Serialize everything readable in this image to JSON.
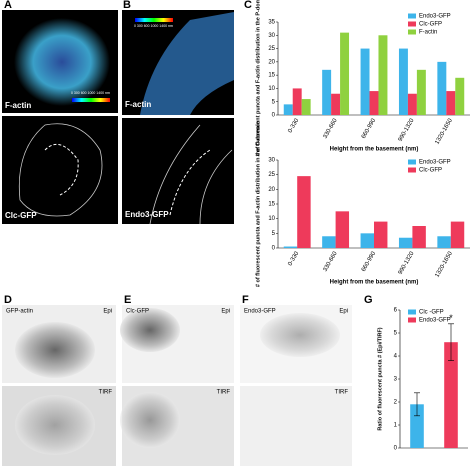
{
  "panels": {
    "A": {
      "letter": "A",
      "top_label": "F-actin",
      "bottom_label": "Clc-GFP",
      "colorbar": "0  300  600  1000  1400 nm"
    },
    "B": {
      "letter": "B",
      "top_label": "F-actin",
      "bottom_label": "Endo3-GFP",
      "colorbar": "0  300  600  1000  1400 nm"
    },
    "C": {
      "letter": "C"
    },
    "D": {
      "letter": "D",
      "label": "GFP-actin",
      "top": "Epi",
      "bottom": "TIRF"
    },
    "E": {
      "letter": "E",
      "label": "Clc-GFP",
      "top": "Epi",
      "bottom": "TIRF"
    },
    "F": {
      "letter": "F",
      "label": "Endo3-GFP",
      "top": "Epi",
      "bottom": "TIRF"
    },
    "G": {
      "letter": "G"
    }
  },
  "chart_data": [
    {
      "type": "bar",
      "ylabel": "# of fluorescent puncta and F-actin distribution in the P-domain (%)",
      "xlabel": "Height from the basement (nm)",
      "categories": [
        "0-330",
        "330-660",
        "660-990",
        "990-1320",
        "1320-1650"
      ],
      "series": [
        {
          "name": "Endo3-GFP",
          "color": "#3db4ea",
          "values": [
            4,
            17,
            25,
            25,
            20
          ]
        },
        {
          "name": "Clc-GFP",
          "color": "#ee3a5b",
          "values": [
            10,
            8,
            9,
            8,
            9
          ]
        },
        {
          "name": "F-actin",
          "color": "#8fd13f",
          "values": [
            6,
            31,
            30,
            17,
            14
          ]
        }
      ],
      "ylim": [
        0,
        35
      ],
      "yticks": [
        0,
        5,
        10,
        15,
        20,
        25,
        30,
        35
      ]
    },
    {
      "type": "bar",
      "ylabel": "# of fluorescent puncta and F-actin distribution in the C-domain",
      "xlabel": "Height from the basement (nm)",
      "categories": [
        "0-330",
        "330-660",
        "660-990",
        "990-1320",
        "1320-1650"
      ],
      "series": [
        {
          "name": "Endo3-GFP",
          "color": "#3db4ea",
          "values": [
            0.5,
            4,
            5,
            3.5,
            4
          ]
        },
        {
          "name": "Clc-GFP",
          "color": "#ee3a5b",
          "values": [
            24.5,
            12.5,
            9,
            7.5,
            9
          ]
        }
      ],
      "ylim": [
        0,
        30
      ],
      "yticks": [
        0,
        5,
        10,
        15,
        20,
        25,
        30
      ]
    },
    {
      "type": "bar",
      "ylabel": "Ratio of fluorescent puncta # (Epi/TIRF)",
      "annotation": "*",
      "series": [
        {
          "name": "Clc -GFP",
          "color": "#3db4ea",
          "values": [
            1.9
          ],
          "errors": [
            0.5
          ]
        },
        {
          "name": "Endo3-GFP",
          "color": "#ee3a5b",
          "values": [
            4.6
          ],
          "errors": [
            0.8
          ]
        }
      ],
      "ylim": [
        0,
        6
      ],
      "yticks": [
        0,
        1,
        2,
        3,
        4,
        5,
        6
      ]
    }
  ]
}
